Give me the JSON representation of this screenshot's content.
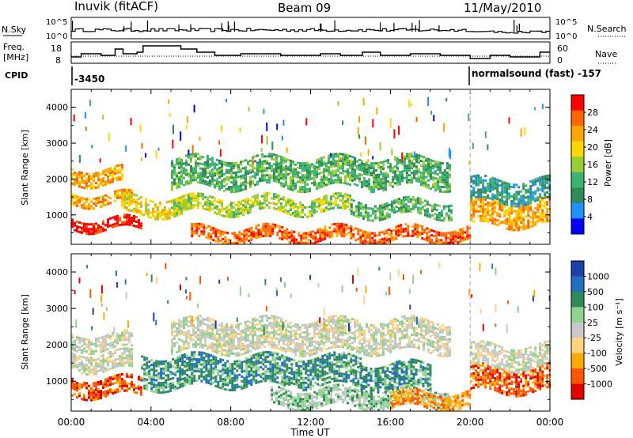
{
  "header": {
    "station": "Inuvik (fitACF)",
    "beam": "Beam 09",
    "date": "11/May/2010"
  },
  "panels": {
    "nsky": {
      "left_label": "N.Sky",
      "right_label": "N.Search",
      "ticks": [
        "10^5",
        "10^0"
      ]
    },
    "freq": {
      "left_label_1": "Freq.",
      "left_label_2": "[MHz]",
      "right_label": "Nave",
      "left_ticks": [
        "18",
        "8"
      ],
      "right_ticks": [
        "60",
        "0"
      ]
    },
    "cpid": {
      "label": "CPID",
      "segments": [
        {
          "text": "-3450",
          "start_hour": 0
        },
        {
          "text": "normalsound (fast) -157",
          "start_hour": 20
        }
      ]
    }
  },
  "colors": {
    "power_scale": [
      "#0000ff",
      "#1e90ff",
      "#2e8b57",
      "#3cb371",
      "#9acd32",
      "#ffd700",
      "#ffa500",
      "#ff6600",
      "#ff0000"
    ],
    "velocity_scale": [
      "#e00000",
      "#ff5500",
      "#ffaa00",
      "#ffd27f",
      "#c8c8c8",
      "#8fd38f",
      "#2e8b57",
      "#1e6fbf",
      "#1f3faa"
    ]
  },
  "chart_data": [
    {
      "type": "heatmap",
      "name": "power",
      "ylabel": "Slant Range [km]",
      "ylim": [
        180,
        4500
      ],
      "yticks": [
        "1000",
        "2000",
        "3000",
        "4000"
      ],
      "xlim_hours": [
        0,
        24
      ],
      "colorbar_label": "Power [dB]",
      "colorbar_ticks": [
        "4",
        "8",
        "12",
        "16",
        "20",
        "24",
        "28"
      ],
      "bands": [
        {
          "t0": 0,
          "t1": 3.5,
          "r0": 600,
          "r1": 900,
          "level": 8
        },
        {
          "t0": 0,
          "t1": 3.0,
          "r0": 1300,
          "r1": 1600,
          "level": 6
        },
        {
          "t0": 0,
          "t1": 2.5,
          "r0": 1900,
          "r1": 2300,
          "level": 6
        },
        {
          "t0": 2.5,
          "t1": 6,
          "r0": 1000,
          "r1": 1500,
          "level": 5
        },
        {
          "t0": 6,
          "t1": 20,
          "r0": 300,
          "r1": 650,
          "level": 7
        },
        {
          "t0": 5,
          "t1": 14,
          "r0": 1100,
          "r1": 1500,
          "level": 4
        },
        {
          "t0": 5,
          "t1": 19,
          "r0": 1800,
          "r1": 2600,
          "level": 3
        },
        {
          "t0": 14,
          "t1": 19,
          "r0": 1000,
          "r1": 1400,
          "level": 3
        },
        {
          "t0": 20,
          "t1": 24,
          "r0": 700,
          "r1": 1400,
          "level": 6
        },
        {
          "t0": 20,
          "t1": 24,
          "r0": 1400,
          "r1": 2000,
          "level": 2
        }
      ]
    },
    {
      "type": "heatmap",
      "name": "velocity",
      "ylabel": "Slant Range [km]",
      "xlabel": "Time UT",
      "ylim": [
        180,
        4500
      ],
      "yticks": [
        "1000",
        "2000",
        "3000",
        "4000"
      ],
      "xlim_hours": [
        0,
        24
      ],
      "xticks": [
        "00:00",
        "04:00",
        "08:00",
        "12:00",
        "16:00",
        "20:00",
        "00:00"
      ],
      "colorbar_label": "Velocity [m s⁻¹]",
      "colorbar_ticks": [
        "1000",
        "500",
        "100",
        "25",
        "-25",
        "-100",
        "-500",
        "-1000"
      ],
      "bands": [
        {
          "t0": 0,
          "t1": 3.5,
          "r0": 600,
          "r1": 1100,
          "level": 1
        },
        {
          "t0": 0,
          "t1": 3.0,
          "r0": 1300,
          "r1": 1800,
          "level": 4
        },
        {
          "t0": 0,
          "t1": 3.0,
          "r0": 1900,
          "r1": 2300,
          "level": 4
        },
        {
          "t0": 3.5,
          "t1": 6,
          "r0": 800,
          "r1": 1700,
          "level": 6
        },
        {
          "t0": 6,
          "t1": 14.5,
          "r0": 900,
          "r1": 1700,
          "level": 6
        },
        {
          "t0": 14.5,
          "t1": 18,
          "r0": 800,
          "r1": 1500,
          "level": 6
        },
        {
          "t0": 5,
          "t1": 19,
          "r0": 1800,
          "r1": 2700,
          "level": 4
        },
        {
          "t0": 10,
          "t1": 19,
          "r0": 300,
          "r1": 800,
          "level": 5
        },
        {
          "t0": 16,
          "t1": 20,
          "r0": 300,
          "r1": 700,
          "level": 2
        },
        {
          "t0": 20,
          "t1": 24,
          "r0": 700,
          "r1": 1400,
          "level": 1
        },
        {
          "t0": 20,
          "t1": 24,
          "r0": 1400,
          "r1": 2000,
          "level": 4
        }
      ]
    }
  ]
}
